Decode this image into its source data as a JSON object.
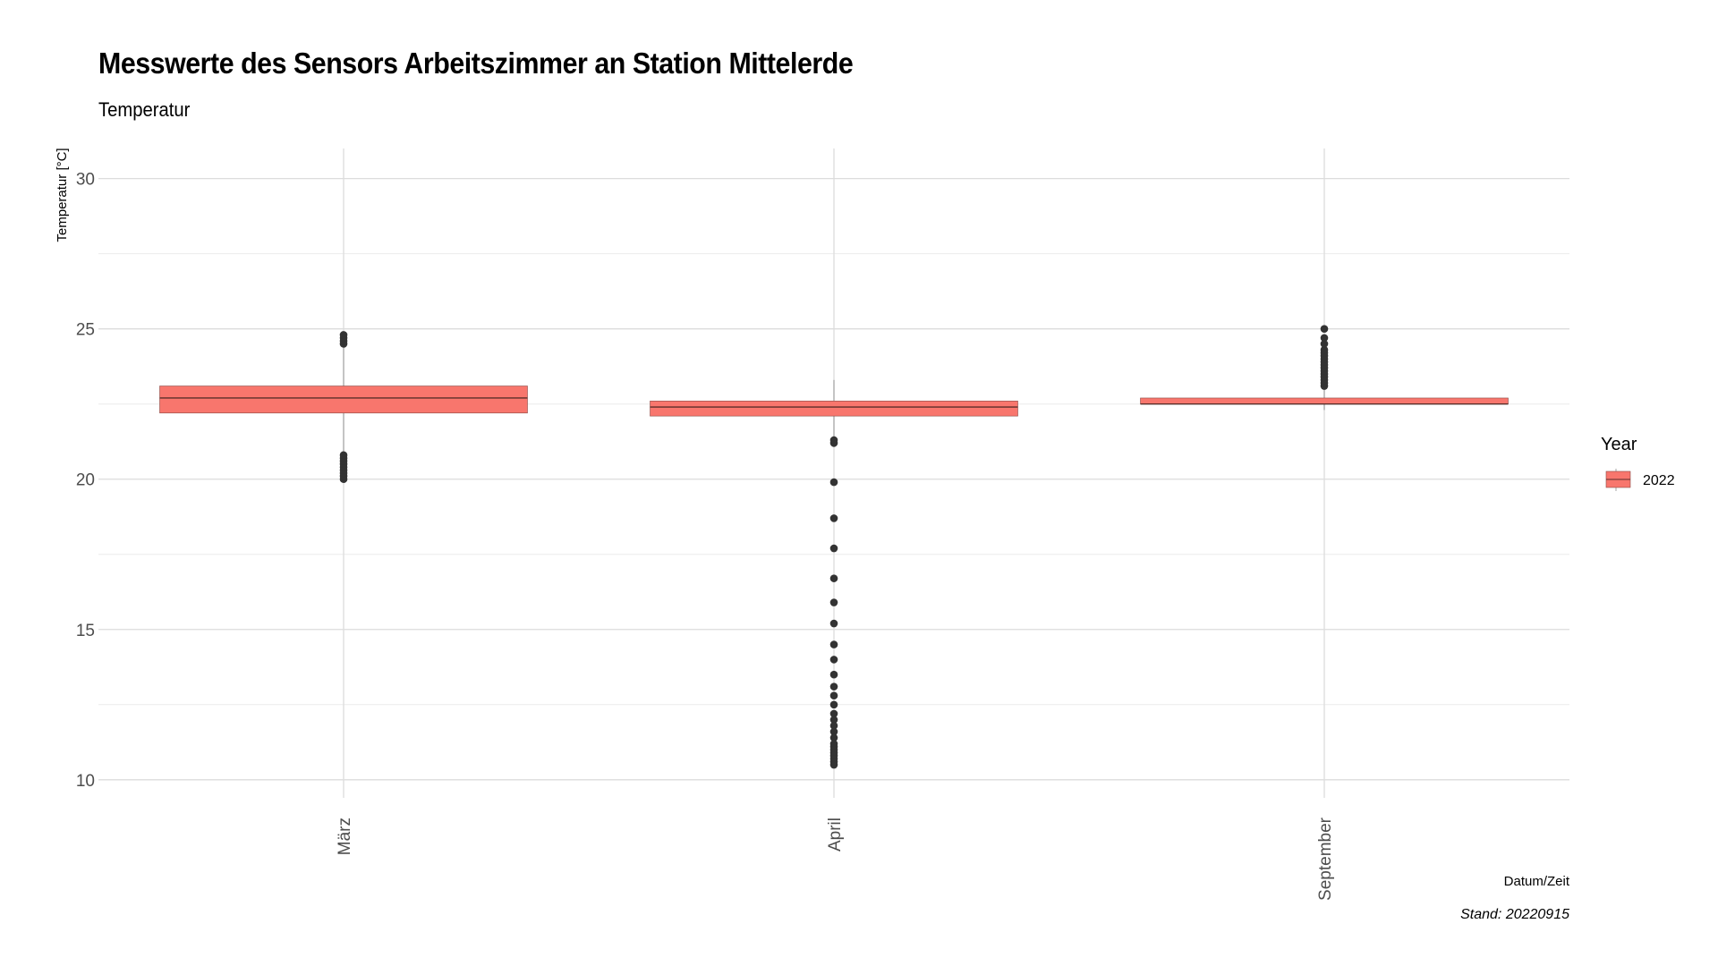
{
  "chart_data": {
    "type": "boxplot",
    "title": "Messwerte des Sensors Arbeitszimmer an Station Mittelerde",
    "subtitle": "Temperatur",
    "xlabel": "Datum/Zeit",
    "ylabel": "Temperatur [°C]",
    "caption": "Stand: 20220915",
    "ylim": [
      9.4,
      31
    ],
    "y_ticks": [
      10,
      15,
      20,
      25,
      30
    ],
    "grid": true,
    "legend": {
      "title": "Year",
      "position": "right",
      "entries": [
        {
          "label": "2022",
          "color": "#F8766D"
        }
      ]
    },
    "categories": [
      "März",
      "April",
      "September"
    ],
    "series": [
      {
        "name": "2022",
        "color": "#F8766D",
        "boxes": [
          {
            "category": "März",
            "whisker_low": 20.9,
            "q1": 22.2,
            "median": 22.7,
            "q3": 23.1,
            "whisker_high": 24.4,
            "outliers": [
              24.5,
              24.6,
              24.7,
              24.8,
              20.0,
              20.1,
              20.2,
              20.3,
              20.4,
              20.5,
              20.6,
              20.7,
              20.8
            ]
          },
          {
            "category": "April",
            "whisker_low": 21.4,
            "q1": 22.1,
            "median": 22.4,
            "q3": 22.6,
            "whisker_high": 23.3,
            "outliers": [
              21.2,
              21.3,
              19.9,
              18.7,
              17.7,
              16.7,
              15.9,
              15.2,
              14.5,
              14.0,
              13.5,
              13.1,
              12.8,
              12.5,
              12.2,
              12.0,
              11.8,
              11.6,
              11.4,
              11.2,
              11.1,
              11.0,
              10.9,
              10.8,
              10.7,
              10.6,
              10.5
            ]
          },
          {
            "category": "September",
            "whisker_low": 22.3,
            "q1": 22.5,
            "median": 22.5,
            "q3": 22.7,
            "whisker_high": 23.0,
            "outliers": [
              23.1,
              23.2,
              23.3,
              23.4,
              23.5,
              23.6,
              23.7,
              23.8,
              23.9,
              24.0,
              24.1,
              24.2,
              24.3,
              24.5,
              24.7,
              25.0
            ]
          }
        ]
      }
    ]
  }
}
